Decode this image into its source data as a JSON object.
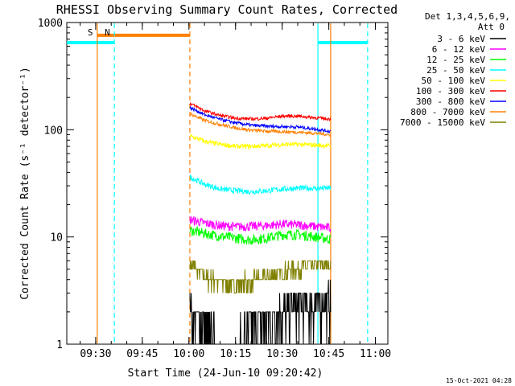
{
  "chart_data": {
    "type": "line",
    "title": "RHESSI Observing Summary Count Rates, Corrected",
    "xlabel": "Start Time (24-Jun-10 09:20:42)",
    "ylabel": "Corrected Count Rate (s⁻¹ detector⁻¹)",
    "y_scale": "log",
    "ylim": [
      1,
      1000
    ],
    "xlim_minutes_of_day": [
      560.7,
      664.0
    ],
    "x_tick_labels": [
      "09:30",
      "09:45",
      "10:00",
      "10:15",
      "10:30",
      "10:45",
      "11:00"
    ],
    "x_tick_minutes": [
      570,
      585,
      600,
      615,
      630,
      645,
      660
    ],
    "y_tick_labels": [
      "1",
      "10",
      "100",
      "1000"
    ],
    "y_tick_values": [
      1,
      10,
      100,
      1000
    ],
    "legend_header": [
      "Det 1,3,4,5,6,9,",
      "Att 0"
    ],
    "legend_position": "right",
    "data_start_minute": 600.3,
    "data_end_minute": 645.6,
    "series": [
      {
        "name": "3 - 6 keV",
        "color": "#000000",
        "samples": [
          [
            600.5,
            2.2
          ],
          [
            603,
            1.6
          ],
          [
            606,
            1.2
          ],
          [
            610,
            1.0
          ],
          [
            615,
            1.0
          ],
          [
            620,
            1.3
          ],
          [
            625,
            1.6
          ],
          [
            630,
            2.0
          ],
          [
            635,
            2.2
          ],
          [
            640,
            2.4
          ],
          [
            645,
            2.5
          ]
        ]
      },
      {
        "name": "6 - 12 keV",
        "color": "#ff00ff",
        "samples": [
          [
            600.5,
            14.5
          ],
          [
            605,
            13.5
          ],
          [
            610,
            12.8
          ],
          [
            615,
            12.5
          ],
          [
            620,
            12.6
          ],
          [
            625,
            12.8
          ],
          [
            630,
            13.2
          ],
          [
            635,
            13.0
          ],
          [
            640,
            12.6
          ],
          [
            645,
            12.2
          ]
        ]
      },
      {
        "name": "12 - 25 keV",
        "color": "#00ff00",
        "samples": [
          [
            600.5,
            11.5
          ],
          [
            605,
            10.8
          ],
          [
            610,
            10.2
          ],
          [
            615,
            9.8
          ],
          [
            620,
            9.4
          ],
          [
            625,
            9.8
          ],
          [
            630,
            10.5
          ],
          [
            635,
            10.6
          ],
          [
            640,
            10.1
          ],
          [
            645,
            9.6
          ]
        ]
      },
      {
        "name": "25 - 50 keV",
        "color": "#00ffff",
        "samples": [
          [
            600.5,
            36
          ],
          [
            605,
            31
          ],
          [
            610,
            28
          ],
          [
            615,
            27
          ],
          [
            620,
            26.5
          ],
          [
            625,
            27
          ],
          [
            630,
            28
          ],
          [
            635,
            28.5
          ],
          [
            640,
            28.5
          ],
          [
            645,
            28.5
          ]
        ]
      },
      {
        "name": "50 - 100 keV",
        "color": "#ffff00",
        "samples": [
          [
            600.5,
            87
          ],
          [
            605,
            78
          ],
          [
            610,
            73
          ],
          [
            615,
            70
          ],
          [
            620,
            70
          ],
          [
            625,
            71
          ],
          [
            630,
            73
          ],
          [
            635,
            73
          ],
          [
            640,
            72
          ],
          [
            645,
            71
          ]
        ]
      },
      {
        "name": "100 - 300 keV",
        "color": "#ff0000",
        "samples": [
          [
            600.5,
            175
          ],
          [
            605,
            150
          ],
          [
            610,
            136
          ],
          [
            615,
            128
          ],
          [
            620,
            126
          ],
          [
            625,
            128
          ],
          [
            630,
            134
          ],
          [
            635,
            134
          ],
          [
            640,
            130
          ],
          [
            645,
            126
          ]
        ]
      },
      {
        "name": "300 - 800 keV",
        "color": "#0000ff",
        "samples": [
          [
            600.5,
            160
          ],
          [
            605,
            138
          ],
          [
            610,
            125
          ],
          [
            615,
            116
          ],
          [
            620,
            110
          ],
          [
            625,
            108
          ],
          [
            630,
            107
          ],
          [
            635,
            106
          ],
          [
            640,
            102
          ],
          [
            645,
            97
          ]
        ]
      },
      {
        "name": "800 - 7000 keV",
        "color": "#ff8000",
        "samples": [
          [
            600.5,
            140
          ],
          [
            605,
            122
          ],
          [
            610,
            112
          ],
          [
            615,
            104
          ],
          [
            620,
            99
          ],
          [
            625,
            97
          ],
          [
            630,
            96
          ],
          [
            635,
            95
          ],
          [
            640,
            93
          ],
          [
            645,
            90
          ]
        ]
      },
      {
        "name": "7000 - 15000 keV",
        "color": "#808000",
        "samples": [
          [
            600.5,
            5.5
          ],
          [
            603,
            4.8
          ],
          [
            606,
            4.0
          ],
          [
            610,
            3.8
          ],
          [
            615,
            3.8
          ],
          [
            620,
            3.9
          ],
          [
            625,
            4.2
          ],
          [
            630,
            4.8
          ],
          [
            635,
            5.2
          ],
          [
            640,
            5.5
          ],
          [
            645,
            5.5
          ]
        ]
      }
    ],
    "annotations": [
      {
        "text": "S",
        "color": "#ff8000",
        "minute": 570.5
      },
      {
        "text": "N",
        "color": "#00ffff",
        "minute": 576.0
      }
    ],
    "overlays": [
      {
        "kind": "bar",
        "color": "#00ffff",
        "from_minute": 560.7,
        "to_minute": 576.0,
        "value": 650
      },
      {
        "kind": "bar",
        "color": "#ff8000",
        "from_minute": 570.5,
        "to_minute": 600.3,
        "value": 760
      },
      {
        "kind": "bar",
        "color": "#00ffff",
        "from_minute": 641.5,
        "to_minute": 657.5,
        "value": 650
      },
      {
        "kind": "vline",
        "color": "#ff8000",
        "minute": 570.5,
        "dashed": false
      },
      {
        "kind": "vline",
        "color": "#00ffff",
        "minute": 576.0,
        "dashed": true
      },
      {
        "kind": "vline",
        "color": "#ff8000",
        "minute": 600.3,
        "dashed": true
      },
      {
        "kind": "vline",
        "color": "#00ffff",
        "minute": 641.5,
        "dashed": false
      },
      {
        "kind": "vline",
        "color": "#ff8000",
        "minute": 645.6,
        "dashed": false
      },
      {
        "kind": "vline",
        "color": "#00ffff",
        "minute": 657.5,
        "dashed": true
      }
    ],
    "footer_timestamp": "15-Oct-2021 04:28"
  }
}
